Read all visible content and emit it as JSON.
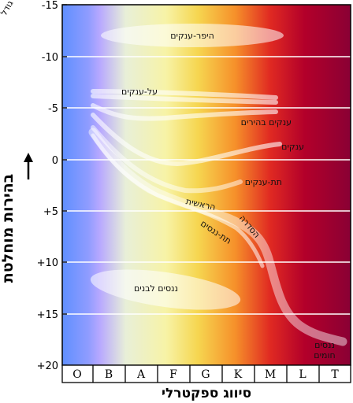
{
  "diagram": {
    "corner_label": "גודל",
    "y_axis_title": "בהירות מוחלטת",
    "x_axis_title": "סיווג ספקטרלי",
    "y_ticks": [
      "-15",
      "-10",
      "-5",
      "0",
      "+5",
      "+10",
      "+15",
      "+20"
    ],
    "spectral_classes": [
      "O",
      "B",
      "A",
      "F",
      "G",
      "K",
      "M",
      "L",
      "T"
    ],
    "spectrum_colors": [
      "#5f8fff",
      "#b7a8ff",
      "#f0f3d8",
      "#f7f3a6",
      "#f6d04a",
      "#f6902a",
      "#e02a22",
      "#b3002a",
      "#8a0034"
    ],
    "regions": {
      "hypergiants": "היפר-ענקים",
      "supergiants": "על-ענקים",
      "bright_giants": "ענקים בהירים",
      "giants": "ענקים",
      "subgiants": "תת-ענקים",
      "main_sequence_1": "הראשית",
      "main_sequence_2": "הסדרה",
      "subdwarfs": "תת-ננסים",
      "white_dwarfs": "ננסים לבנים",
      "brown_dwarfs_1": "ננסים",
      "brown_dwarfs_2": "חומים"
    }
  }
}
